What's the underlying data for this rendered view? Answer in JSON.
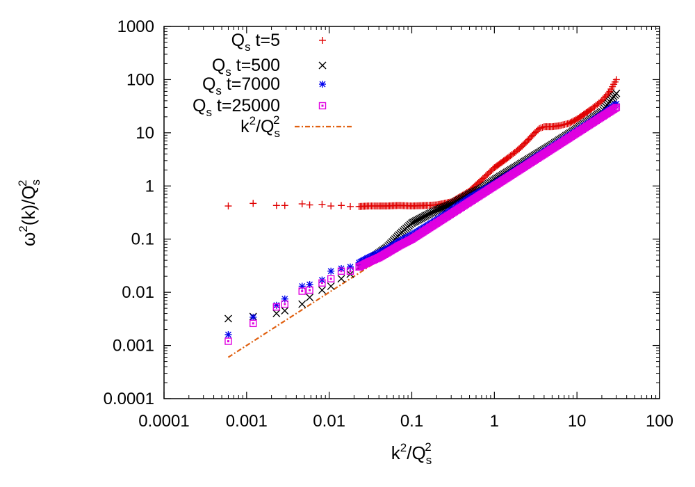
{
  "chart_data": {
    "type": "scatter",
    "title": "",
    "xscale": "log",
    "yscale": "log",
    "xlim": [
      0.0001,
      100
    ],
    "ylim": [
      0.0001,
      1000
    ],
    "xlabel": {
      "k": "k",
      "sup": "2",
      "slash": "/Q",
      "sub": "s",
      "sup2": "2"
    },
    "ylabel": {
      "omega": "ω",
      "sup": "2",
      "rest": "(k)/Q",
      "sub": "s",
      "sup2": "2"
    },
    "xticks": [
      {
        "v": 0.0001,
        "label": "0.0001"
      },
      {
        "v": 0.001,
        "label": "0.001"
      },
      {
        "v": 0.01,
        "label": "0.01"
      },
      {
        "v": 0.1,
        "label": "0.1"
      },
      {
        "v": 1,
        "label": "1"
      },
      {
        "v": 10,
        "label": "10"
      },
      {
        "v": 100,
        "label": "100"
      }
    ],
    "yticks": [
      {
        "v": 0.0001,
        "label": "0.0001"
      },
      {
        "v": 0.001,
        "label": "0.001"
      },
      {
        "v": 0.01,
        "label": "0.01"
      },
      {
        "v": 0.1,
        "label": "0.1"
      },
      {
        "v": 1,
        "label": "1"
      },
      {
        "v": 10,
        "label": "10"
      },
      {
        "v": 100,
        "label": "100"
      },
      {
        "v": 1000,
        "label": "1000"
      }
    ],
    "legend_position": "top-left",
    "series": [
      {
        "name": "Q_s t=5",
        "label": {
          "q": "Q",
          "sub": "s",
          "rest": " t=5"
        },
        "marker": "plus",
        "color": "#e00000",
        "points": [
          [
            0.0006,
            0.42
          ],
          [
            0.0012,
            0.47
          ],
          [
            0.0023,
            0.43
          ],
          [
            0.0029,
            0.43
          ],
          [
            0.0047,
            0.46
          ],
          [
            0.0058,
            0.44
          ],
          [
            0.0082,
            0.45
          ],
          [
            0.0105,
            0.42
          ],
          [
            0.014,
            0.43
          ],
          [
            0.018,
            0.41
          ],
          [
            0.023,
            0.41
          ],
          [
            0.03,
            0.42
          ],
          [
            0.04,
            0.42
          ],
          [
            0.05,
            0.42
          ],
          [
            0.07,
            0.43
          ],
          [
            0.1,
            0.42
          ],
          [
            0.15,
            0.43
          ],
          [
            0.2,
            0.44
          ],
          [
            0.3,
            0.5
          ],
          [
            0.5,
            0.8
          ],
          [
            0.7,
            1.3
          ],
          [
            1,
            2.2
          ],
          [
            1.5,
            3.5
          ],
          [
            2,
            5
          ],
          [
            2.5,
            7
          ],
          [
            3,
            9.5
          ],
          [
            3.5,
            12
          ],
          [
            4,
            13
          ],
          [
            5,
            13
          ],
          [
            6,
            13.5
          ],
          [
            8,
            15
          ],
          [
            10,
            18
          ],
          [
            15,
            28
          ],
          [
            20,
            40
          ],
          [
            25,
            60
          ],
          [
            30,
            100
          ]
        ]
      },
      {
        "name": "Q_s t=500",
        "label": {
          "q": "Q",
          "sub": "s",
          "rest": " t=500"
        },
        "marker": "cross",
        "color": "#000000",
        "points": [
          [
            0.0006,
            0.0032
          ],
          [
            0.0012,
            0.0035
          ],
          [
            0.0023,
            0.004
          ],
          [
            0.0029,
            0.0045
          ],
          [
            0.0047,
            0.006
          ],
          [
            0.0058,
            0.008
          ],
          [
            0.0082,
            0.011
          ],
          [
            0.0105,
            0.013
          ],
          [
            0.014,
            0.018
          ],
          [
            0.018,
            0.022
          ],
          [
            0.023,
            0.03
          ],
          [
            0.03,
            0.04
          ],
          [
            0.04,
            0.055
          ],
          [
            0.05,
            0.07
          ],
          [
            0.07,
            0.12
          ],
          [
            0.1,
            0.2
          ],
          [
            0.15,
            0.28
          ],
          [
            0.2,
            0.35
          ],
          [
            0.3,
            0.45
          ],
          [
            0.5,
            0.7
          ],
          [
            0.7,
            0.9
          ],
          [
            1,
            1.3
          ],
          [
            2,
            2.5
          ],
          [
            5,
            6
          ],
          [
            10,
            12
          ],
          [
            20,
            25
          ],
          [
            30,
            55
          ]
        ]
      },
      {
        "name": "Q_s t=7000",
        "label": {
          "q": "Q",
          "sub": "s",
          "rest": " t=7000"
        },
        "marker": "star",
        "color": "#0000ee",
        "points": [
          [
            0.0006,
            0.0016
          ],
          [
            0.0012,
            0.0034
          ],
          [
            0.0023,
            0.0057
          ],
          [
            0.0029,
            0.0075
          ],
          [
            0.0047,
            0.013
          ],
          [
            0.0058,
            0.014
          ],
          [
            0.0082,
            0.017
          ],
          [
            0.0105,
            0.025
          ],
          [
            0.014,
            0.028
          ],
          [
            0.018,
            0.03
          ],
          [
            0.023,
            0.036
          ],
          [
            0.03,
            0.045
          ],
          [
            0.04,
            0.055
          ],
          [
            0.05,
            0.065
          ],
          [
            0.07,
            0.09
          ],
          [
            0.1,
            0.12
          ],
          [
            0.2,
            0.23
          ],
          [
            0.5,
            0.6
          ],
          [
            1,
            1.1
          ],
          [
            2,
            2.2
          ],
          [
            5,
            5.5
          ],
          [
            10,
            11
          ],
          [
            20,
            22
          ],
          [
            30,
            35
          ]
        ]
      },
      {
        "name": "Q_s t=25000",
        "label": {
          "q": "Q",
          "sub": "s",
          "rest": " t=25000"
        },
        "marker": "square",
        "color": "#e000e0",
        "points": [
          [
            0.0006,
            0.0012
          ],
          [
            0.0012,
            0.0026
          ],
          [
            0.0023,
            0.0053
          ],
          [
            0.0029,
            0.006
          ],
          [
            0.0047,
            0.0105
          ],
          [
            0.0058,
            0.011
          ],
          [
            0.0082,
            0.015
          ],
          [
            0.0105,
            0.018
          ],
          [
            0.014,
            0.025
          ],
          [
            0.018,
            0.025
          ],
          [
            0.023,
            0.03
          ],
          [
            0.03,
            0.037
          ],
          [
            0.04,
            0.045
          ],
          [
            0.05,
            0.055
          ],
          [
            0.07,
            0.075
          ],
          [
            0.1,
            0.1
          ],
          [
            0.2,
            0.2
          ],
          [
            0.5,
            0.5
          ],
          [
            1,
            1
          ],
          [
            2,
            2
          ],
          [
            5,
            5
          ],
          [
            10,
            10
          ],
          [
            20,
            20
          ],
          [
            30,
            30
          ]
        ]
      }
    ],
    "reference_line": {
      "name": "k^2/Q_s^2",
      "label": {
        "k": "k",
        "sup": "2",
        "slash": "/Q",
        "sub": "s",
        "sup2": "2"
      },
      "style": "dash-dot",
      "color": "#e06010",
      "x_range": [
        0.0006,
        30
      ],
      "slope": 1
    }
  }
}
